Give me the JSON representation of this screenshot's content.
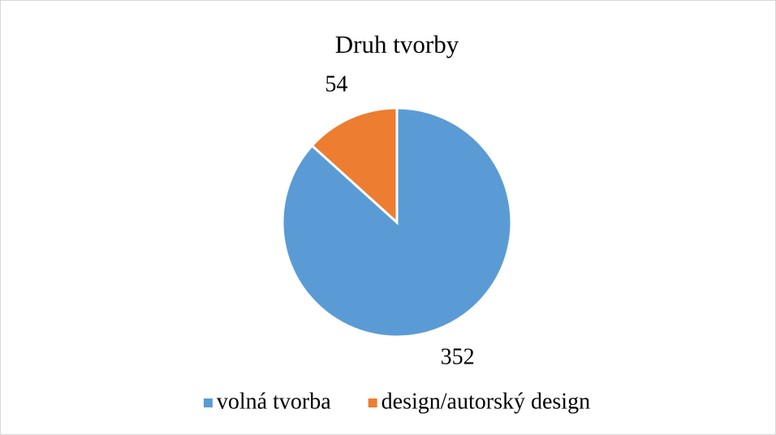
{
  "chart_data": {
    "type": "pie",
    "title": "Druh tvorby",
    "categories": [
      "volná tvorba",
      "design/autorský design"
    ],
    "values": [
      352,
      54
    ],
    "colors": [
      "#5b9bd5",
      "#ed7d31"
    ],
    "legend": "bottom"
  }
}
